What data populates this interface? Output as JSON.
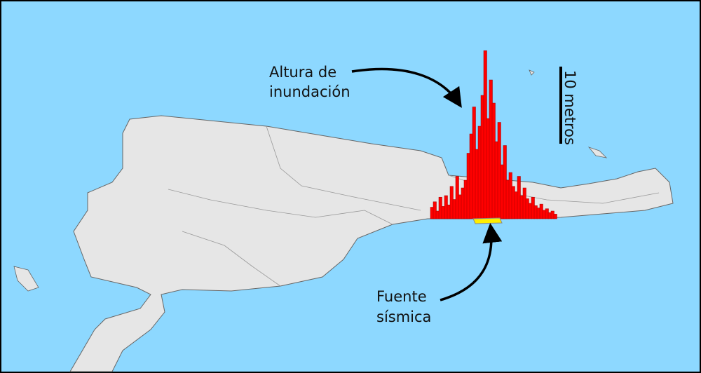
{
  "labels": {
    "inundation": [
      "Altura de",
      "inundación"
    ],
    "source": [
      "Fuente",
      "sísmica"
    ],
    "scale": "10 metros"
  },
  "inundation_heights": [
    1.5,
    2.2,
    1.0,
    2.8,
    1.6,
    3.0,
    1.8,
    4.2,
    2.5,
    5.5,
    3.1,
    4.0,
    5.0,
    8.5,
    11.0,
    14.5,
    9.0,
    12.0,
    16.0,
    21.8,
    13.0,
    18.0,
    15.0,
    10.0,
    12.5,
    7.0,
    9.5,
    5.0,
    6.0,
    4.2,
    3.5,
    5.5,
    3.0,
    4.0,
    2.6,
    2.0,
    2.8,
    1.7,
    1.4,
    1.9,
    1.1,
    1.3,
    0.8,
    1.0,
    0.6
  ]
}
